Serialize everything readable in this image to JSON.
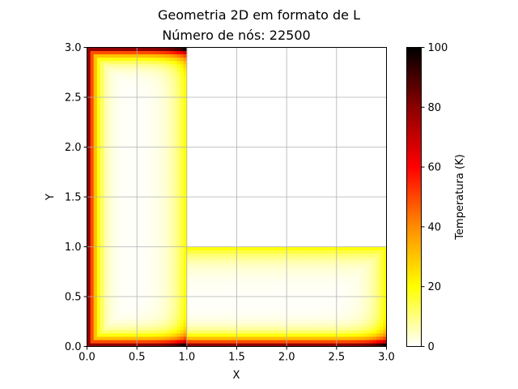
{
  "chart_data": {
    "type": "heatmap",
    "title": "Geometria 2D em formato de L",
    "subtitle": "Número de nós: 22500",
    "xlabel": "X",
    "ylabel": "Y",
    "xlim": [
      0,
      3
    ],
    "ylim": [
      0,
      3
    ],
    "xticks": [
      "0.0",
      "0.5",
      "1.0",
      "1.5",
      "2.0",
      "2.5",
      "3.0"
    ],
    "yticks": [
      "0.0",
      "0.5",
      "1.0",
      "1.5",
      "2.0",
      "2.5",
      "3.0"
    ],
    "grid": true,
    "domain": {
      "shape": "L",
      "vertical_leg": {
        "x": [
          0,
          1
        ],
        "y": [
          0,
          3
        ]
      },
      "horizontal_leg": {
        "x": [
          0,
          3
        ],
        "y": [
          0,
          1
        ]
      }
    },
    "field": {
      "hot_edges": [
        "x = 0",
        "y = 0",
        "y = 3 (0 ≤ x ≤ 1)"
      ],
      "hot_edge_value": 100,
      "interior_value": 0
    },
    "colorbar": {
      "label": "Temperatura (K)",
      "min": 0,
      "max": 100,
      "ticks": [
        "0",
        "20",
        "40",
        "60",
        "80",
        "100"
      ],
      "colormap": "hot_r",
      "colors": [
        "#ffffff",
        "#ffff00",
        "#ff8c00",
        "#ff0000",
        "#8b0000",
        "#000000"
      ]
    }
  }
}
